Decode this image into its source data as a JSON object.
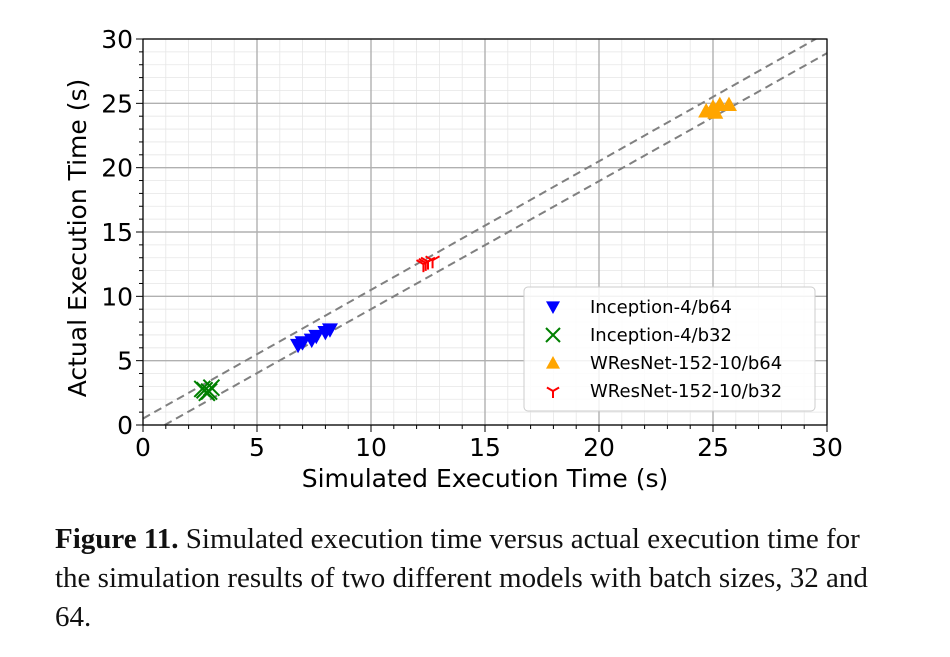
{
  "chart_data": {
    "type": "scatter",
    "xlabel": "Simulated Execution Time (s)",
    "ylabel": "Actual Execution Time (s)",
    "xlim": [
      0,
      30
    ],
    "ylim": [
      0,
      30
    ],
    "xticks": [
      "0",
      "5",
      "10",
      "15",
      "20",
      "25",
      "30"
    ],
    "yticks": [
      "0",
      "5",
      "10",
      "15",
      "20",
      "25",
      "30"
    ],
    "grid": true,
    "minor_grid": true,
    "legend_position": "lower-right",
    "series": [
      {
        "name": "Inception-4/b64",
        "marker": "triangle-down",
        "color": "#0000ff",
        "points": [
          [
            6.8,
            6.2
          ],
          [
            7.0,
            6.4
          ],
          [
            7.4,
            6.6
          ],
          [
            7.6,
            6.9
          ],
          [
            8.0,
            7.2
          ],
          [
            8.2,
            7.4
          ]
        ]
      },
      {
        "name": "Inception-4/b32",
        "marker": "x",
        "color": "#008000",
        "points": [
          [
            2.6,
            2.8
          ],
          [
            2.8,
            2.5
          ],
          [
            3.0,
            2.9
          ],
          [
            2.9,
            2.6
          ],
          [
            2.7,
            2.7
          ]
        ]
      },
      {
        "name": "WResNet-152-10/b64",
        "marker": "triangle-up",
        "color": "#ffa500",
        "points": [
          [
            24.7,
            24.4
          ],
          [
            25.0,
            24.7
          ],
          [
            25.3,
            24.9
          ],
          [
            25.7,
            24.9
          ],
          [
            25.1,
            24.3
          ]
        ]
      },
      {
        "name": "WResNet-152-10/b32",
        "marker": "tri-down",
        "color": "#ff0000",
        "points": [
          [
            12.3,
            12.5
          ],
          [
            12.5,
            12.7
          ],
          [
            12.7,
            12.8
          ],
          [
            12.4,
            12.6
          ]
        ]
      }
    ],
    "reference_lines": [
      {
        "style": "dashed",
        "color": "#808080",
        "from": [
          0,
          0.5
        ],
        "to": [
          30,
          30.5
        ]
      },
      {
        "style": "dashed",
        "color": "#808080",
        "from": [
          0.95,
          0
        ],
        "to": [
          30,
          28.9
        ]
      }
    ]
  },
  "caption": {
    "label": "Figure 11.",
    "text": " Simulated execution time versus actual execution time for the simulation results of two different models with batch sizes, 32 and 64."
  }
}
